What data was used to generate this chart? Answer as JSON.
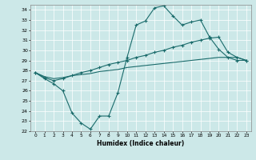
{
  "xlabel": "Humidex (Indice chaleur)",
  "xlim": [
    -0.5,
    23.5
  ],
  "ylim": [
    22,
    34.5
  ],
  "yticks": [
    22,
    23,
    24,
    25,
    26,
    27,
    28,
    29,
    30,
    31,
    32,
    33,
    34
  ],
  "xticks": [
    0,
    1,
    2,
    3,
    4,
    5,
    6,
    7,
    8,
    9,
    10,
    11,
    12,
    13,
    14,
    15,
    16,
    17,
    18,
    19,
    20,
    21,
    22,
    23
  ],
  "bg_color": "#cce8e8",
  "line_color": "#1a6b6b",
  "line1_x": [
    0,
    1,
    2,
    3,
    4,
    5,
    6,
    7,
    8,
    9,
    10,
    11,
    12,
    13,
    14,
    15,
    16,
    17,
    18,
    19,
    20,
    21,
    22,
    23
  ],
  "line1_y": [
    27.8,
    27.2,
    26.7,
    26.0,
    23.8,
    22.8,
    22.2,
    23.5,
    23.5,
    25.8,
    29.3,
    32.5,
    32.9,
    34.2,
    34.4,
    33.4,
    32.5,
    32.8,
    33.0,
    31.3,
    30.1,
    29.3,
    29.0,
    29.0
  ],
  "line2_x": [
    0,
    1,
    2,
    3,
    4,
    5,
    6,
    7,
    8,
    9,
    10,
    11,
    12,
    13,
    14,
    15,
    16,
    17,
    18,
    19,
    20,
    21,
    22,
    23
  ],
  "line2_y": [
    27.8,
    27.3,
    27.0,
    27.2,
    27.5,
    27.8,
    28.0,
    28.3,
    28.6,
    28.8,
    29.0,
    29.3,
    29.5,
    29.8,
    30.0,
    30.3,
    30.5,
    30.8,
    31.0,
    31.2,
    31.3,
    29.8,
    29.3,
    29.0
  ],
  "line3_x": [
    0,
    1,
    2,
    3,
    4,
    5,
    6,
    7,
    8,
    9,
    10,
    11,
    12,
    13,
    14,
    15,
    16,
    17,
    18,
    19,
    20,
    21,
    22,
    23
  ],
  "line3_y": [
    27.8,
    27.4,
    27.2,
    27.3,
    27.5,
    27.6,
    27.7,
    27.9,
    28.0,
    28.1,
    28.3,
    28.4,
    28.5,
    28.6,
    28.7,
    28.8,
    28.9,
    29.0,
    29.1,
    29.2,
    29.3,
    29.3,
    29.3,
    29.0
  ]
}
